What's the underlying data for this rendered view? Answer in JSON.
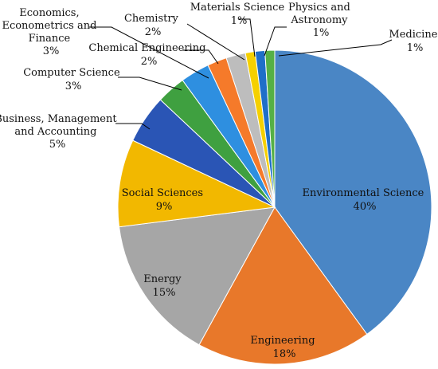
{
  "chart_data": {
    "type": "pie",
    "title": "",
    "slices": [
      {
        "name": "Environmental Science",
        "percent_label": "40%",
        "value": 40,
        "color": "#4A86C5"
      },
      {
        "name": "Engineering",
        "percent_label": "18%",
        "value": 18,
        "color": "#E8782A"
      },
      {
        "name": "Energy",
        "percent_label": "15%",
        "value": 15,
        "color": "#A6A6A6"
      },
      {
        "name": "Social Sciences",
        "percent_label": "9%",
        "value": 9,
        "color": "#F2B800"
      },
      {
        "name": "Business, Management and Accounting",
        "percent_label": "5%",
        "value": 5,
        "color": "#2A55B5"
      },
      {
        "name": "Computer Science",
        "percent_label": "3%",
        "value": 3,
        "color": "#3FA040"
      },
      {
        "name": "Economics, Econometrics and Finance",
        "percent_label": "3%",
        "value": 3,
        "color": "#2E8FE0"
      },
      {
        "name": "Chemical Engineering",
        "percent_label": "2%",
        "value": 2,
        "color": "#F57A2A"
      },
      {
        "name": "Chemistry",
        "percent_label": "2%",
        "value": 2,
        "color": "#BDBDBD"
      },
      {
        "name": "Materials Science",
        "percent_label": "1%",
        "value": 1,
        "color": "#F5D000"
      },
      {
        "name": "Physics and Astronomy",
        "percent_label": "1%",
        "value": 1,
        "color": "#1F6FC8"
      },
      {
        "name": "Medicine",
        "percent_label": "1%",
        "value": 1,
        "color": "#55B046"
      }
    ]
  }
}
